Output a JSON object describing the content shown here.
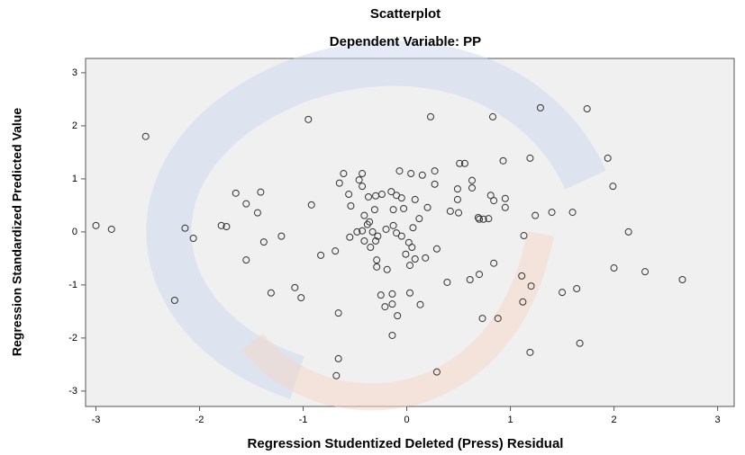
{
  "chart_data": {
    "type": "scatter",
    "title": "Scatterplot",
    "subtitle": "Dependent Variable: PP",
    "xlabel": "Regression Studentized Deleted (Press) Residual",
    "ylabel": "Regression Standardized Predicted Value",
    "xlim": [
      -3.1,
      3.16
    ],
    "ylim": [
      -3.29,
      3.27
    ],
    "xticks": [
      -3,
      -2,
      -1,
      0,
      1,
      2,
      3
    ],
    "yticks": [
      -3,
      -2,
      -1,
      0,
      1,
      2,
      3
    ],
    "grid": false,
    "color": "#333333",
    "background": "#f0f0f0",
    "x": [
      -3.0,
      -2.85,
      -2.52,
      -2.14,
      -2.06,
      -2.24,
      -1.79,
      -1.74,
      -1.65,
      -1.55,
      -1.55,
      -1.44,
      -1.41,
      -1.38,
      -1.31,
      -1.21,
      -1.08,
      -1.02,
      -0.95,
      -0.92,
      -0.83,
      -0.69,
      -0.66,
      -0.66,
      -0.68,
      -0.65,
      -0.61,
      -0.56,
      -0.54,
      -0.55,
      -0.48,
      -0.46,
      -0.43,
      -0.43,
      -0.43,
      -0.41,
      -0.41,
      -0.37,
      -0.38,
      -0.36,
      -0.35,
      -0.33,
      -0.31,
      -0.3,
      -0.3,
      -0.29,
      -0.29,
      -0.28,
      -0.25,
      -0.24,
      -0.21,
      -0.2,
      -0.19,
      -0.15,
      -0.14,
      -0.14,
      -0.13,
      -0.14,
      -0.13,
      -0.1,
      -0.1,
      -0.09,
      -0.07,
      -0.05,
      -0.05,
      -0.03,
      -0.01,
      0.02,
      0.03,
      0.03,
      0.04,
      0.05,
      0.06,
      0.08,
      0.08,
      0.12,
      0.13,
      0.15,
      0.18,
      0.2,
      0.23,
      0.27,
      0.27,
      0.29,
      0.29,
      0.39,
      0.42,
      0.49,
      0.49,
      0.5,
      0.51,
      0.56,
      0.61,
      0.63,
      0.63,
      0.69,
      0.7,
      0.7,
      0.74,
      0.73,
      0.79,
      0.81,
      0.83,
      0.84,
      0.84,
      0.88,
      0.93,
      0.95,
      0.95,
      1.11,
      1.12,
      1.13,
      1.19,
      1.2,
      1.19,
      1.24,
      1.29,
      1.4,
      1.5,
      1.6,
      1.64,
      1.67,
      1.74,
      1.94,
      1.99,
      2.0,
      2.14,
      2.3,
      2.66
    ],
    "y": [
      0.12,
      0.05,
      1.8,
      0.07,
      -0.12,
      -1.29,
      0.12,
      0.1,
      0.73,
      0.53,
      -0.53,
      0.36,
      0.75,
      -0.19,
      -1.15,
      -0.08,
      -1.05,
      -1.24,
      2.12,
      0.51,
      -0.44,
      -0.36,
      -1.53,
      -2.39,
      -2.71,
      0.92,
      1.1,
      0.71,
      0.49,
      -0.1,
      0.0,
      0.98,
      1.1,
      0.86,
      0.02,
      -0.17,
      0.31,
      0.66,
      0.14,
      0.19,
      -0.29,
      0.0,
      0.42,
      0.68,
      -0.17,
      -0.53,
      -0.66,
      -0.08,
      -1.19,
      0.71,
      -1.41,
      0.05,
      -0.71,
      0.76,
      -1.36,
      -1.95,
      0.42,
      -1.17,
      0.12,
      0.69,
      -0.02,
      -1.58,
      1.15,
      -0.08,
      0.64,
      0.44,
      -0.42,
      -0.2,
      -0.63,
      -1.15,
      1.1,
      -0.29,
      0.08,
      0.61,
      -0.51,
      0.25,
      -1.37,
      1.07,
      -0.49,
      0.46,
      2.17,
      1.15,
      0.9,
      -0.32,
      -2.64,
      -0.95,
      0.39,
      0.61,
      0.81,
      0.36,
      1.29,
      1.29,
      -0.9,
      0.97,
      0.83,
      0.27,
      -0.8,
      0.24,
      0.24,
      -1.63,
      0.25,
      0.69,
      2.17,
      0.59,
      -0.59,
      -1.63,
      1.34,
      0.63,
      0.46,
      -0.83,
      -1.32,
      -0.07,
      1.39,
      -1.02,
      -2.27,
      0.31,
      2.34,
      0.37,
      -1.14,
      0.37,
      -1.07,
      -2.1,
      2.32,
      1.39,
      0.86,
      -0.68,
      0.0,
      -0.75,
      -0.9
    ]
  }
}
